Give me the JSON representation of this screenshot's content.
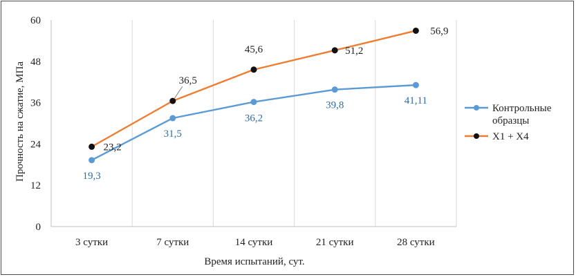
{
  "chart_data": {
    "type": "line",
    "categories": [
      "3 сутки",
      "7 сутки",
      "14 сутки",
      "21 сутки",
      "28 сутки"
    ],
    "xlabel": "Время испытаний, сут.",
    "ylabel": "Прочность на сжатие, МПа",
    "ylim": [
      0,
      60
    ],
    "yticks": [
      0,
      12,
      24,
      36,
      48,
      60
    ],
    "grid": "vertical",
    "legend_position": "right",
    "series": [
      {
        "name": "Контрольные образцы",
        "legend_lines": [
          "Контрольные",
          "образцы"
        ],
        "values": [
          19.3,
          31.5,
          36.2,
          39.8,
          41.11
        ],
        "labels": [
          "19,3",
          "31,5",
          "36,2",
          "39,8",
          "41,11"
        ],
        "line_color": "#5b9bd5",
        "marker_color": "#5b9bd5",
        "label_color": "#2e6da4"
      },
      {
        "name": "X1 + X4",
        "legend_lines": [
          "X1 + X4"
        ],
        "values": [
          23.2,
          36.5,
          45.6,
          51.2,
          56.9
        ],
        "labels": [
          "23,2",
          "36,5",
          "45,6",
          "51,2",
          "56,9"
        ],
        "line_color": "#ed7d31",
        "marker_color": "#111111",
        "label_color": "#222222"
      }
    ]
  }
}
